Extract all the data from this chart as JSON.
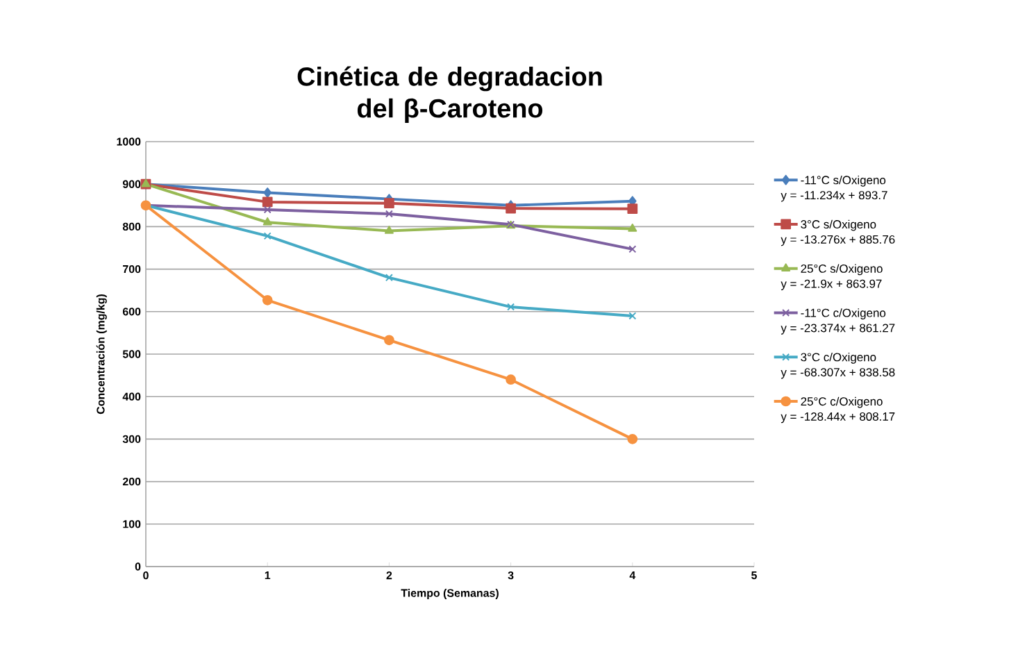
{
  "chart_data": {
    "type": "line",
    "title": "Cinética de degradacion del β-Caroteno",
    "xlabel": "Tiempo (Semanas)",
    "ylabel": "Concentración (mg/kg)",
    "x": [
      0,
      1,
      2,
      3,
      4
    ],
    "series": [
      {
        "name": "-11°C s/Oxigeno",
        "color": "#4a7ebb",
        "marker": "diamond",
        "values": [
          900,
          880,
          865,
          850,
          860
        ]
      },
      {
        "name": "3°C s/Oxigeno",
        "color": "#be4b48",
        "marker": "square",
        "values": [
          900,
          858,
          855,
          843,
          842
        ]
      },
      {
        "name": "25°C s/Oxigeno",
        "color": "#98b954",
        "marker": "triangle",
        "values": [
          900,
          810,
          790,
          802,
          795
        ]
      },
      {
        "name": "-11°C c/Oxigeno",
        "color": "#7d60a0",
        "marker": "cross",
        "values": [
          850,
          840,
          830,
          805,
          747
        ]
      },
      {
        "name": "3°C c/Oxigeno",
        "color": "#46aac5",
        "marker": "cross",
        "values": [
          850,
          778,
          680,
          611,
          590
        ]
      },
      {
        "name": "25°C c/Oxigeno",
        "color": "#f69240",
        "marker": "circle",
        "values": [
          850,
          627,
          533,
          440,
          300
        ]
      }
    ],
    "annotations": [
      "y = -11.234x + 893.7",
      "y = -13.276x + 885.76",
      "y = -21.9x + 863.97",
      "y = -23.374x + 861.27",
      "y = -68.307x + 838.58",
      "y = -128.44x + 808.17"
    ],
    "xlim": [
      0,
      5
    ],
    "ylim": [
      0,
      1000
    ],
    "xticks": [
      0,
      1,
      2,
      3,
      4,
      5
    ],
    "yticks": [
      0,
      100,
      200,
      300,
      400,
      500,
      600,
      700,
      800,
      900,
      1000
    ],
    "grid": "y",
    "legend": "right",
    "line_style": "solid"
  }
}
